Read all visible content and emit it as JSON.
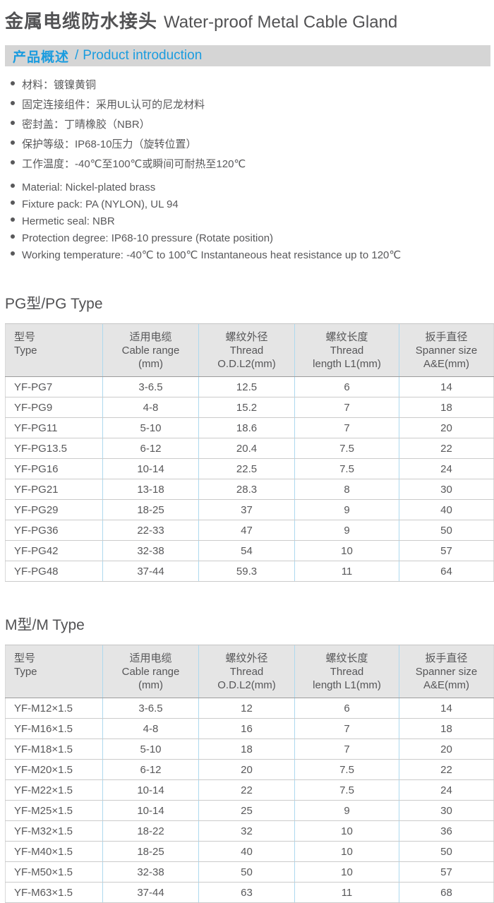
{
  "accent_color": "#1b9cdf",
  "bar_background": "#d5d5d5",
  "table_header_background": "#e5e5e5",
  "table_divider_color": "#aed9ee",
  "title": {
    "zh": "金属电缆防水接头",
    "en": "Water-proof Metal Cable Gland"
  },
  "intro_bar": {
    "zh": "产品概述",
    "divider": "/",
    "en": "Product introduction"
  },
  "features_zh": [
    "材料：镀镍黄铜",
    "固定连接组件：采用UL认可的尼龙材料",
    "密封盖：丁晴橡胶（NBR）",
    "保护等级：IP68-10压力（旋转位置）",
    "工作温度：-40℃至100℃或瞬间可耐热至120℃"
  ],
  "features_en": [
    "Material: Nickel-plated brass",
    "Fixture pack: PA (NYLON), UL 94",
    "Hermetic seal: NBR",
    "Protection degree: IP68-10 pressure (Rotate position)",
    "Working temperature: -40℃ to 100℃ Instantaneous heat resistance up to 120℃"
  ],
  "tables": {
    "headers": [
      {
        "lines": [
          "型号",
          "Type"
        ]
      },
      {
        "lines": [
          "适用电缆",
          "Cable range",
          "(mm)"
        ]
      },
      {
        "lines": [
          "螺纹外径",
          "Thread",
          "O.D.L2(mm)"
        ]
      },
      {
        "lines": [
          "螺纹长度",
          "Thread",
          "length L1(mm)"
        ]
      },
      {
        "lines": [
          "扳手直径",
          "Spanner size",
          "A&E(mm)"
        ]
      }
    ],
    "col_widths": [
      "138px",
      "136px",
      "136px",
      "148px",
      "134px"
    ],
    "pg": {
      "title": "PG型/PG Type",
      "rows": [
        [
          "YF-PG7",
          "3-6.5",
          "12.5",
          "6",
          "14"
        ],
        [
          "YF-PG9",
          "4-8",
          "15.2",
          "7",
          "18"
        ],
        [
          "YF-PG11",
          "5-10",
          "18.6",
          "7",
          "20"
        ],
        [
          "YF-PG13.5",
          "6-12",
          "20.4",
          "7.5",
          "22"
        ],
        [
          "YF-PG16",
          "10-14",
          "22.5",
          "7.5",
          "24"
        ],
        [
          "YF-PG21",
          "13-18",
          "28.3",
          "8",
          "30"
        ],
        [
          "YF-PG29",
          "18-25",
          "37",
          "9",
          "40"
        ],
        [
          "YF-PG36",
          "22-33",
          "47",
          "9",
          "50"
        ],
        [
          "YF-PG42",
          "32-38",
          "54",
          "10",
          "57"
        ],
        [
          "YF-PG48",
          "37-44",
          "59.3",
          "11",
          "64"
        ]
      ]
    },
    "m": {
      "title": "M型/M Type",
      "rows": [
        [
          "YF-M12×1.5",
          "3-6.5",
          "12",
          "6",
          "14"
        ],
        [
          "YF-M16×1.5",
          "4-8",
          "16",
          "7",
          "18"
        ],
        [
          "YF-M18×1.5",
          "5-10",
          "18",
          "7",
          "20"
        ],
        [
          "YF-M20×1.5",
          "6-12",
          "20",
          "7.5",
          "22"
        ],
        [
          "YF-M22×1.5",
          "10-14",
          "22",
          "7.5",
          "24"
        ],
        [
          "YF-M25×1.5",
          "10-14",
          "25",
          "9",
          "30"
        ],
        [
          "YF-M32×1.5",
          "18-22",
          "32",
          "10",
          "36"
        ],
        [
          "YF-M40×1.5",
          "18-25",
          "40",
          "10",
          "50"
        ],
        [
          "YF-M50×1.5",
          "32-38",
          "50",
          "10",
          "57"
        ],
        [
          "YF-M63×1.5",
          "37-44",
          "63",
          "11",
          "68"
        ]
      ]
    }
  }
}
